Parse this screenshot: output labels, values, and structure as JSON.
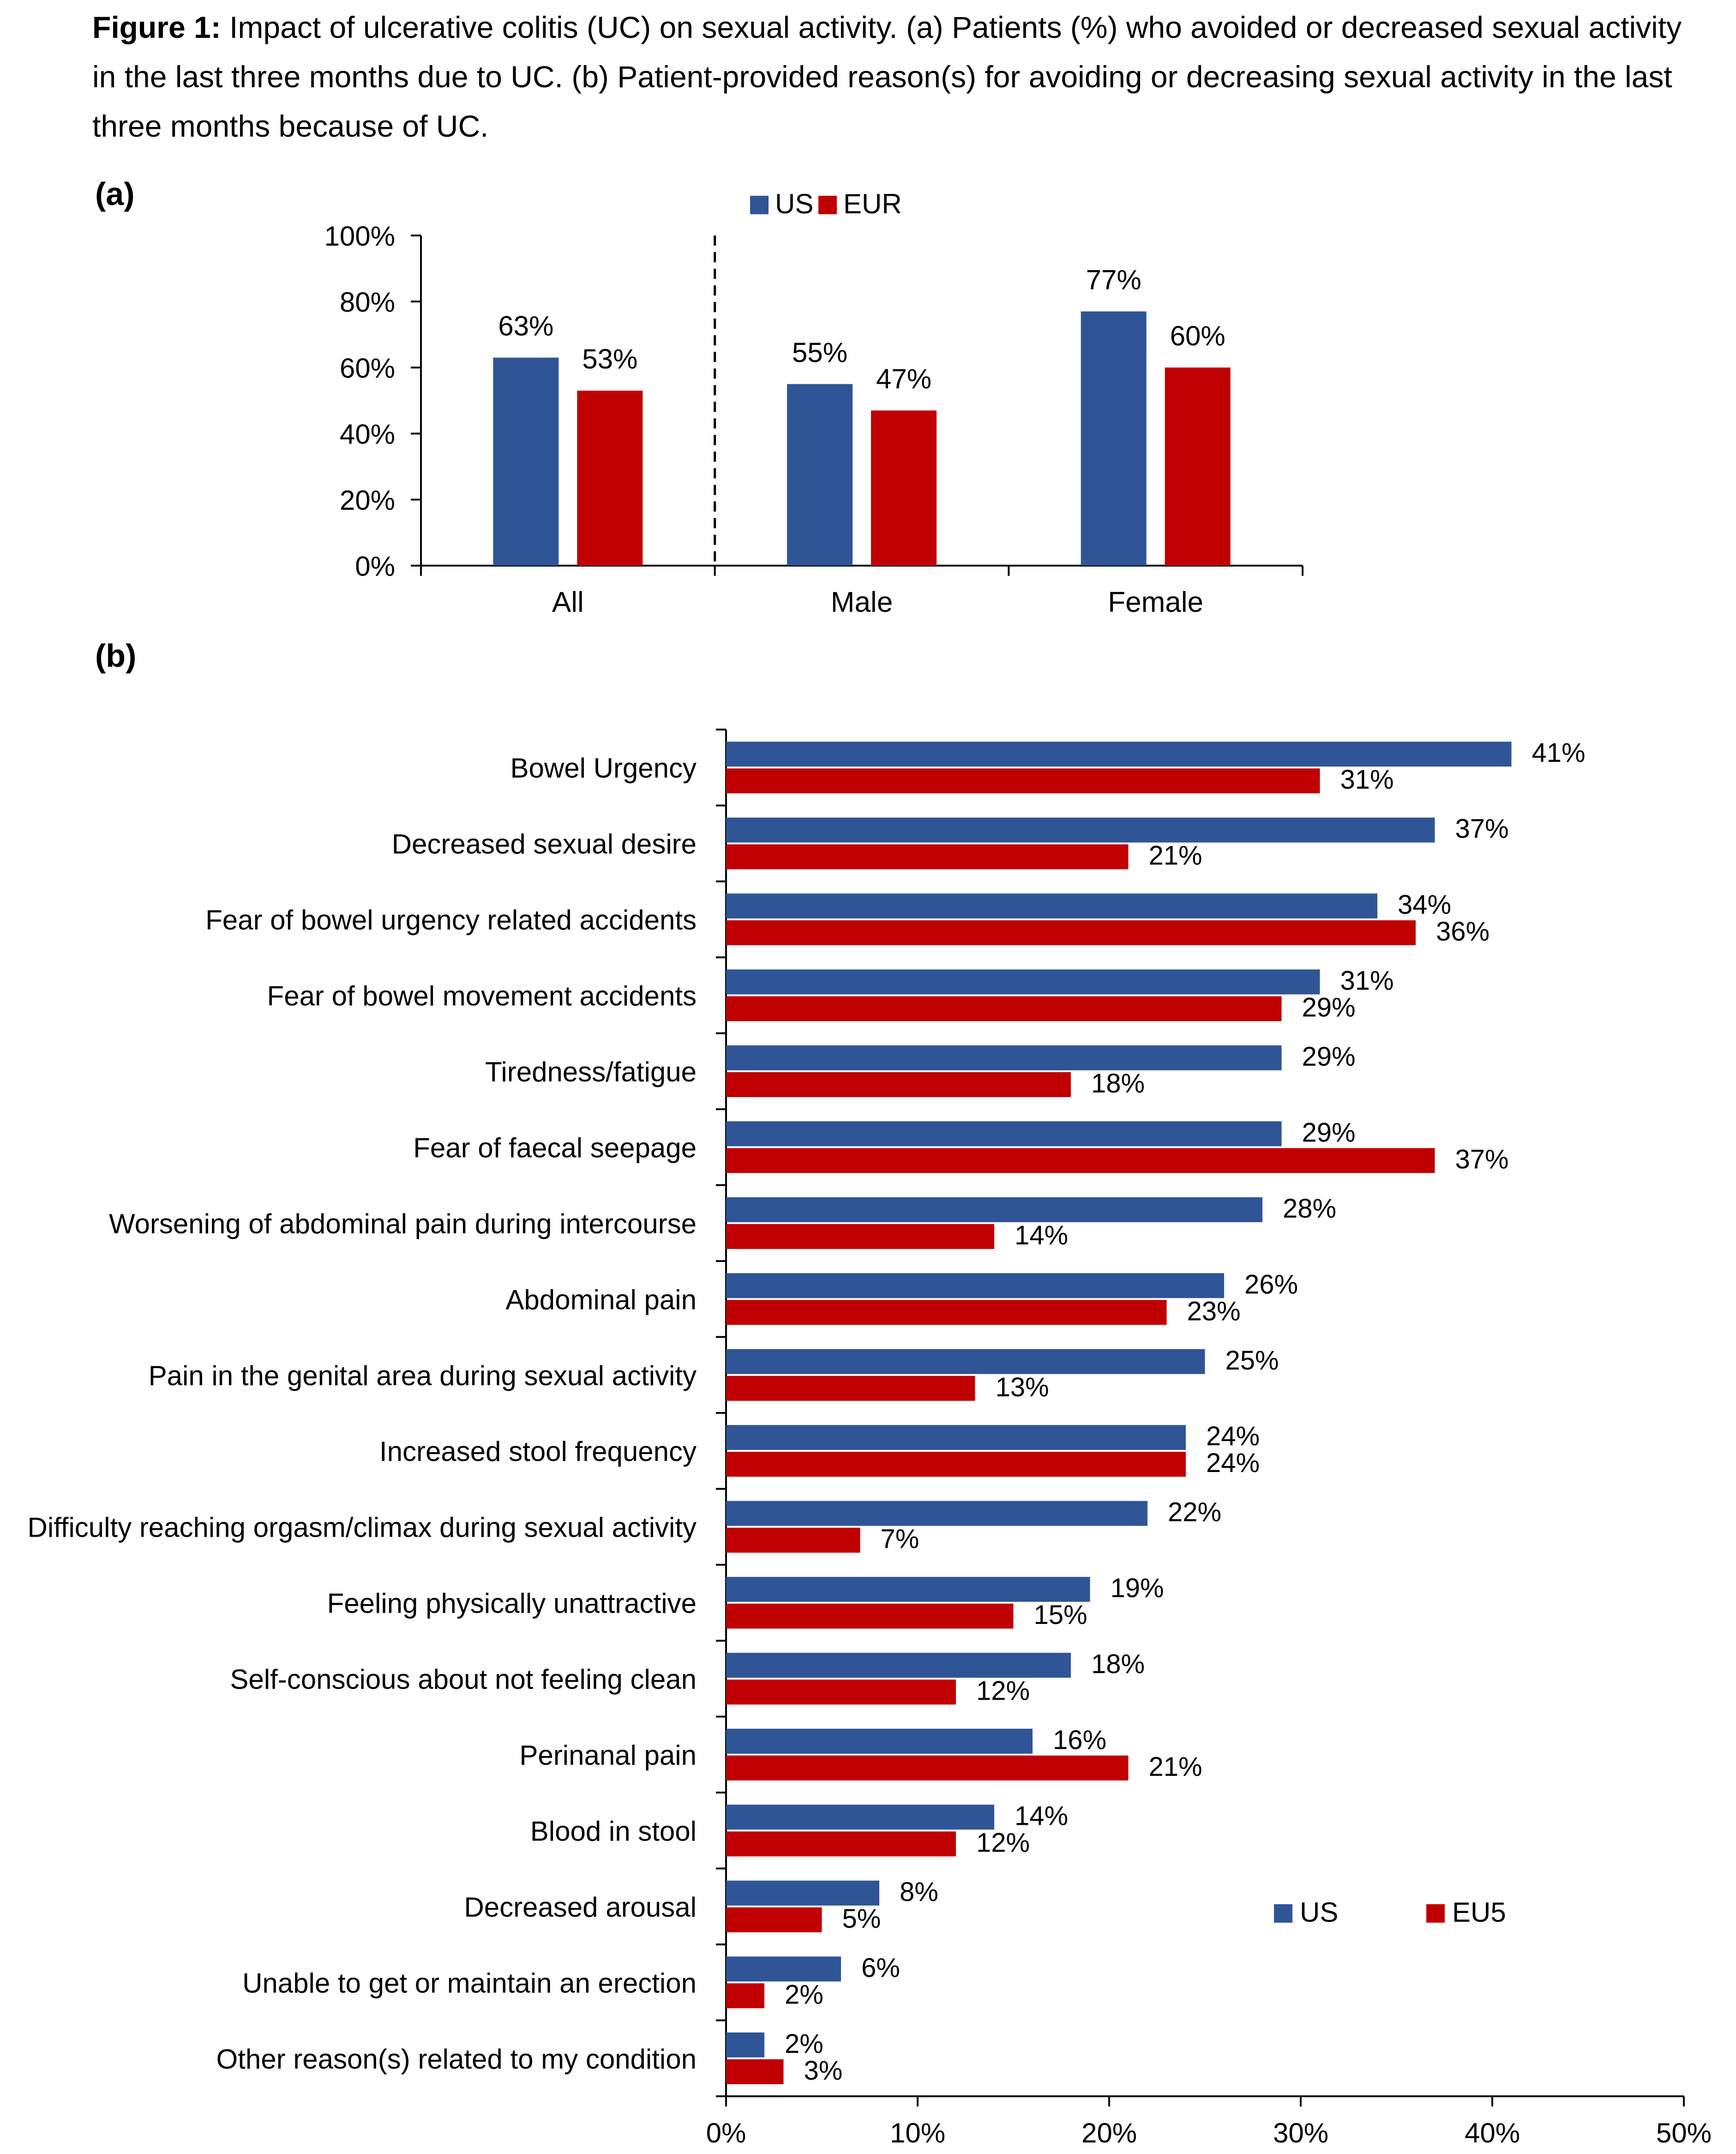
{
  "caption": {
    "prefix": "Figure 1:",
    "text": "Impact of ulcerative colitis (UC) on sexual activity. (a) Patients (%) who avoided or decreased sexual activity in the last three months due to UC. (b) Patient-provided reason(s) for avoiding or decreasing sexual activity in the last three months because of UC."
  },
  "colors": {
    "us": "#2F5597",
    "eur": "#C00000"
  },
  "chart_data": [
    {
      "panel": "(a)",
      "type": "bar",
      "categories": [
        "All",
        "Male",
        "Female"
      ],
      "series": [
        {
          "name": "US",
          "values": [
            63,
            55,
            77
          ]
        },
        {
          "name": "EUR",
          "values": [
            53,
            47,
            60
          ]
        }
      ],
      "value_labels": {
        "US": [
          "63%",
          "55%",
          "77%"
        ],
        "EUR": [
          "53%",
          "47%",
          "60%"
        ]
      },
      "ylim": [
        0,
        100
      ],
      "yticks": [
        "0%",
        "20%",
        "40%",
        "60%",
        "80%",
        "100%"
      ],
      "legend": "top-center",
      "separator": "dashed line after All",
      "grid": false
    },
    {
      "panel": "(b)",
      "type": "bar",
      "orientation": "horizontal",
      "categories": [
        "Bowel Urgency",
        "Decreased sexual desire",
        "Fear of bowel urgency related accidents",
        "Fear of bowel movement accidents",
        "Tiredness/fatigue",
        "Fear of faecal seepage",
        "Worsening of abdominal pain during intercourse",
        "Abdominal pain",
        "Pain in the genital area during sexual activity",
        "Increased stool frequency",
        "Difficulty reaching orgasm/climax during sexual activity",
        "Feeling physically unattractive",
        "Self-conscious about not feeling clean",
        "Perinanal pain",
        "Blood in stool",
        "Decreased arousal",
        "Unable to get or maintain an erection",
        "Other reason(s) related to my condition"
      ],
      "series": [
        {
          "name": "US",
          "values": [
            41,
            37,
            34,
            31,
            29,
            29,
            28,
            26,
            25,
            24,
            22,
            19,
            18,
            16,
            14,
            8,
            6,
            2
          ]
        },
        {
          "name": "EU5",
          "values": [
            31,
            21,
            36,
            29,
            18,
            37,
            14,
            23,
            13,
            24,
            7,
            15,
            12,
            21,
            12,
            5,
            2,
            3
          ]
        }
      ],
      "xlim": [
        0,
        50
      ],
      "xticks": [
        "0%",
        "10%",
        "20%",
        "30%",
        "40%",
        "50%"
      ],
      "legend": "bottom-right",
      "grid": false
    }
  ]
}
